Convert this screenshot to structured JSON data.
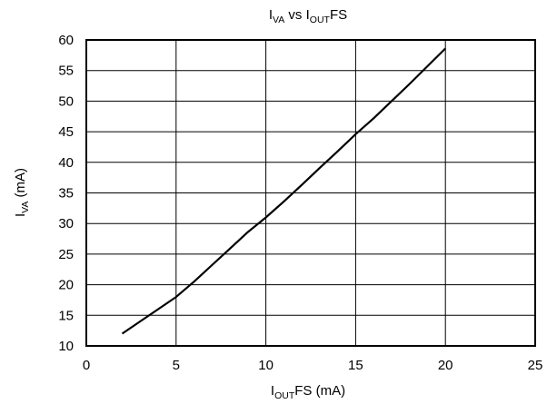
{
  "chart_data": {
    "type": "line",
    "title": {
      "main": "I",
      "sub1": "VA",
      "mid": " vs I",
      "sub2": "OUT",
      "end": "FS"
    },
    "xlabel": {
      "main": "I",
      "sub": "OUT",
      "end": "FS (mA)"
    },
    "ylabel": {
      "main": "I",
      "sub": "VA",
      "end": " (mA)"
    },
    "xlim": [
      0,
      25
    ],
    "ylim": [
      10,
      60
    ],
    "xticks": [
      "0",
      "5",
      "10",
      "15",
      "20",
      "25"
    ],
    "yticks": [
      "10",
      "15",
      "20",
      "25",
      "30",
      "35",
      "40",
      "45",
      "50",
      "55",
      "60"
    ],
    "grid": true,
    "line_color": "#000000",
    "series": [
      {
        "x": [
          2,
          3,
          4,
          5,
          6,
          7,
          8,
          9,
          10,
          11,
          12,
          13,
          14,
          15,
          16,
          17,
          18,
          19,
          20
        ],
        "y": [
          12.0,
          14.0,
          16.0,
          18.0,
          20.5,
          23.2,
          25.9,
          28.6,
          31.0,
          33.6,
          36.3,
          39.1,
          41.8,
          44.6,
          47.2,
          50.0,
          52.8,
          55.7,
          58.6
        ]
      }
    ]
  }
}
